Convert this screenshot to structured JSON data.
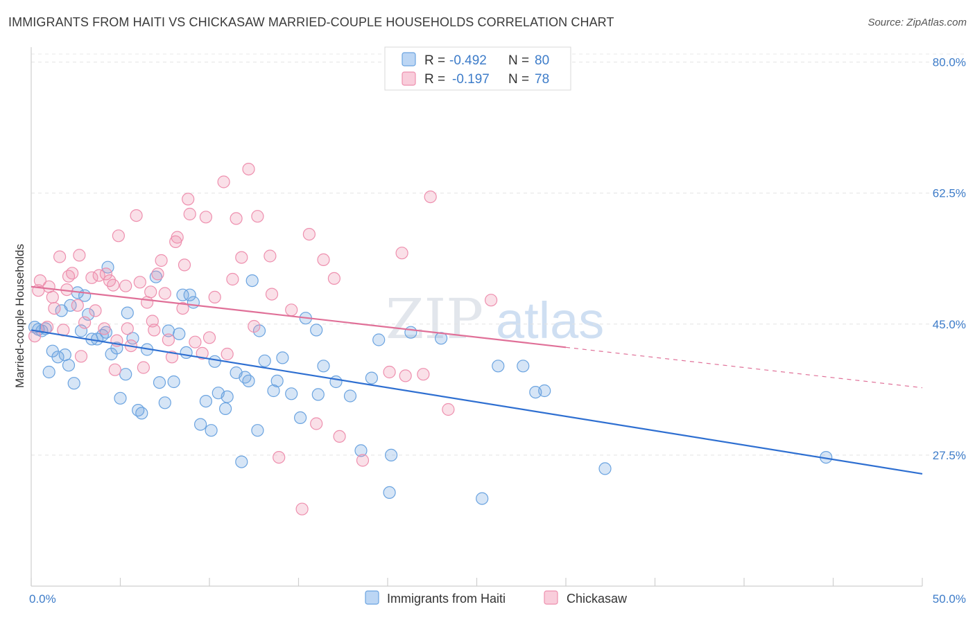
{
  "header": {
    "title": "IMMIGRANTS FROM HAITI VS CHICKASAW MARRIED-COUPLE HOUSEHOLDS CORRELATION CHART",
    "source": "Source: ZipAtlas.com"
  },
  "watermark": {
    "zip": "ZIP",
    "atlas": "atlas"
  },
  "legend_top": [
    {
      "r_label": "R =",
      "r_value": "-0.492",
      "n_label": "N =",
      "n_value": "80",
      "color": "#6aa3e0"
    },
    {
      "r_label": "R =",
      "r_value": "-0.197",
      "n_label": "N =",
      "n_value": "78",
      "color": "#ee8fae"
    }
  ],
  "legend_bottom": [
    {
      "label": "Immigrants from Haiti",
      "color": "#6aa3e0"
    },
    {
      "label": "Chickasaw",
      "color": "#ee8fae"
    }
  ],
  "chart_data": {
    "type": "scatter",
    "title": "IMMIGRANTS FROM HAITI VS CHICKASAW MARRIED-COUPLE HOUSEHOLDS CORRELATION CHART",
    "xlabel": "",
    "ylabel": "Married-couple Households",
    "xlim": [
      0,
      50
    ],
    "ylim": [
      10,
      82
    ],
    "x_tick_labels": [
      "0.0%",
      "50.0%"
    ],
    "y_ticks": [
      27.5,
      45.0,
      62.5,
      80.0
    ],
    "y_tick_labels": [
      "27.5%",
      "45.0%",
      "62.5%",
      "80.0%"
    ],
    "grid": true,
    "legend_position": "top-center",
    "series": [
      {
        "name": "Immigrants from Haiti",
        "color": "#6aa3e0",
        "line_color": "#2e6fd1",
        "trend": {
          "x": [
            0,
            50
          ],
          "y": [
            44.2,
            25.0
          ],
          "dashed_from": null
        },
        "points": [
          [
            0.2,
            44.6
          ],
          [
            0.4,
            44.3
          ],
          [
            0.6,
            44.1
          ],
          [
            0.8,
            44.4
          ],
          [
            1.0,
            38.6
          ],
          [
            1.2,
            41.4
          ],
          [
            1.5,
            40.6
          ],
          [
            1.7,
            46.8
          ],
          [
            1.9,
            40.9
          ],
          [
            2.1,
            39.5
          ],
          [
            2.4,
            37.1
          ],
          [
            2.6,
            49.2
          ],
          [
            2.8,
            44.1
          ],
          [
            3.0,
            48.8
          ],
          [
            3.2,
            46.3
          ],
          [
            3.4,
            43.0
          ],
          [
            3.7,
            43.0
          ],
          [
            4.0,
            43.5
          ],
          [
            4.2,
            43.9
          ],
          [
            4.3,
            52.6
          ],
          [
            4.5,
            41.0
          ],
          [
            4.8,
            41.8
          ],
          [
            5.0,
            35.1
          ],
          [
            5.3,
            38.3
          ],
          [
            5.4,
            46.5
          ],
          [
            5.7,
            43.1
          ],
          [
            6.0,
            33.5
          ],
          [
            6.2,
            33.1
          ],
          [
            6.5,
            41.6
          ],
          [
            7.0,
            51.3
          ],
          [
            7.2,
            37.2
          ],
          [
            7.5,
            34.5
          ],
          [
            7.7,
            44.1
          ],
          [
            8.0,
            37.3
          ],
          [
            8.3,
            43.7
          ],
          [
            8.5,
            48.9
          ],
          [
            8.7,
            41.2
          ],
          [
            8.9,
            48.9
          ],
          [
            9.1,
            47.9
          ],
          [
            9.5,
            31.6
          ],
          [
            9.8,
            34.7
          ],
          [
            10.1,
            30.8
          ],
          [
            10.3,
            40.0
          ],
          [
            10.5,
            35.8
          ],
          [
            10.9,
            33.7
          ],
          [
            11.0,
            35.3
          ],
          [
            11.5,
            38.5
          ],
          [
            11.8,
            26.6
          ],
          [
            12.0,
            37.9
          ],
          [
            12.2,
            37.4
          ],
          [
            12.4,
            50.8
          ],
          [
            12.7,
            30.8
          ],
          [
            12.8,
            44.1
          ],
          [
            13.1,
            40.1
          ],
          [
            13.6,
            36.1
          ],
          [
            13.8,
            37.4
          ],
          [
            14.1,
            40.5
          ],
          [
            14.6,
            35.7
          ],
          [
            15.1,
            32.5
          ],
          [
            15.4,
            45.8
          ],
          [
            16.0,
            44.2
          ],
          [
            16.1,
            35.6
          ],
          [
            16.4,
            39.4
          ],
          [
            17.1,
            37.3
          ],
          [
            17.9,
            35.4
          ],
          [
            18.5,
            28.1
          ],
          [
            19.1,
            37.8
          ],
          [
            19.5,
            42.9
          ],
          [
            20.1,
            22.5
          ],
          [
            20.2,
            27.5
          ],
          [
            21.3,
            43.9
          ],
          [
            23.0,
            43.1
          ],
          [
            25.3,
            21.7
          ],
          [
            26.2,
            39.4
          ],
          [
            27.6,
            39.4
          ],
          [
            28.3,
            35.9
          ],
          [
            28.8,
            36.1
          ],
          [
            32.2,
            25.7
          ],
          [
            44.6,
            27.2
          ],
          [
            2.2,
            47.5
          ]
        ]
      },
      {
        "name": "Chickasaw",
        "color": "#ee8fae",
        "line_color": "#e07098",
        "trend": {
          "x": [
            0,
            30
          ],
          "y": [
            50.0,
            41.9
          ],
          "dashed_to": [
            50,
            36.5
          ]
        },
        "points": [
          [
            0.2,
            43.4
          ],
          [
            0.4,
            49.5
          ],
          [
            0.5,
            50.8
          ],
          [
            0.9,
            44.6
          ],
          [
            1.0,
            50.0
          ],
          [
            1.2,
            48.6
          ],
          [
            1.3,
            47.1
          ],
          [
            1.6,
            54.0
          ],
          [
            1.8,
            44.2
          ],
          [
            2.0,
            49.6
          ],
          [
            2.1,
            51.4
          ],
          [
            2.3,
            51.8
          ],
          [
            2.6,
            47.5
          ],
          [
            2.7,
            54.2
          ],
          [
            2.8,
            40.7
          ],
          [
            3.0,
            45.2
          ],
          [
            3.4,
            51.2
          ],
          [
            3.6,
            46.8
          ],
          [
            3.8,
            51.5
          ],
          [
            4.1,
            44.4
          ],
          [
            4.2,
            51.7
          ],
          [
            4.4,
            50.8
          ],
          [
            4.6,
            50.2
          ],
          [
            4.7,
            38.9
          ],
          [
            4.8,
            42.8
          ],
          [
            4.9,
            56.8
          ],
          [
            5.3,
            50.1
          ],
          [
            5.4,
            44.4
          ],
          [
            5.6,
            42.1
          ],
          [
            5.9,
            59.5
          ],
          [
            6.1,
            50.6
          ],
          [
            6.3,
            39.2
          ],
          [
            6.5,
            47.9
          ],
          [
            6.7,
            49.3
          ],
          [
            6.8,
            45.4
          ],
          [
            6.9,
            44.2
          ],
          [
            7.1,
            51.7
          ],
          [
            7.3,
            53.5
          ],
          [
            7.5,
            49.1
          ],
          [
            7.7,
            42.9
          ],
          [
            7.9,
            40.6
          ],
          [
            8.1,
            56.0
          ],
          [
            8.2,
            56.6
          ],
          [
            8.5,
            47.1
          ],
          [
            8.6,
            52.9
          ],
          [
            8.8,
            61.7
          ],
          [
            8.9,
            59.7
          ],
          [
            9.2,
            42.6
          ],
          [
            9.6,
            41.1
          ],
          [
            9.8,
            59.3
          ],
          [
            10.0,
            43.2
          ],
          [
            10.3,
            48.6
          ],
          [
            10.8,
            64.0
          ],
          [
            11.0,
            41.0
          ],
          [
            11.3,
            51.0
          ],
          [
            11.5,
            59.1
          ],
          [
            11.8,
            53.9
          ],
          [
            12.2,
            65.7
          ],
          [
            12.5,
            44.7
          ],
          [
            12.7,
            59.4
          ],
          [
            13.4,
            54.1
          ],
          [
            13.5,
            49.0
          ],
          [
            13.9,
            27.2
          ],
          [
            14.6,
            46.9
          ],
          [
            15.2,
            20.3
          ],
          [
            15.6,
            57.0
          ],
          [
            16.0,
            31.7
          ],
          [
            16.4,
            53.6
          ],
          [
            17.0,
            51.1
          ],
          [
            17.3,
            30.0
          ],
          [
            18.6,
            26.8
          ],
          [
            20.1,
            38.6
          ],
          [
            20.8,
            54.5
          ],
          [
            21.0,
            38.1
          ],
          [
            22.4,
            62.0
          ],
          [
            23.4,
            33.6
          ],
          [
            25.8,
            48.2
          ],
          [
            22.0,
            38.3
          ]
        ]
      }
    ]
  }
}
